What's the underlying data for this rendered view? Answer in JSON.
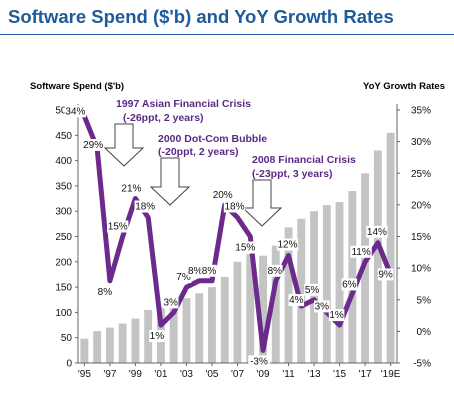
{
  "title": "Software Spend ($'b) and YoY Growth Rates",
  "chart_data": {
    "type": "bar+line",
    "title": "Software Spend ($'b) and YoY Growth Rates",
    "left_axis_title": "Software Spend ($'b)",
    "right_axis_title": "YoY Growth Rates",
    "left_ylim": [
      0,
      500
    ],
    "left_ticks": [
      "0",
      "50",
      "100",
      "150",
      "200",
      "250",
      "300",
      "350",
      "400",
      "450",
      "500"
    ],
    "right_ylim": [
      -5,
      35
    ],
    "right_ticks": [
      "-5%",
      "0%",
      "5%",
      "10%",
      "15%",
      "20%",
      "25%",
      "30%",
      "35%"
    ],
    "x_tick_labels": [
      "'95",
      "'97",
      "'99",
      "'01",
      "'03",
      "'05",
      "'07",
      "'09",
      "'11",
      "'13",
      "'15",
      "'17",
      "'19E"
    ],
    "years": [
      "1995",
      "1996",
      "1997",
      "1998",
      "1999",
      "2000",
      "2001",
      "2002",
      "2003",
      "2004",
      "2005",
      "2006",
      "2007",
      "2008",
      "2009",
      "2010",
      "2011",
      "2012",
      "2013",
      "2014",
      "2015",
      "2016",
      "2017",
      "2018",
      "2019E"
    ],
    "series": [
      {
        "name": "Software Spend ($'b)",
        "type": "bar",
        "color": "#c4c4c4",
        "values": [
          48,
          63,
          70,
          78,
          88,
          105,
          110,
          118,
          128,
          138,
          150,
          170,
          200,
          215,
          212,
          232,
          268,
          285,
          300,
          312,
          318,
          340,
          375,
          420,
          455
        ]
      },
      {
        "name": "YoY Growth Rates",
        "type": "line",
        "color": "#6b2a8c",
        "values": [
          34,
          29,
          8,
          15,
          21,
          18,
          1,
          3,
          7,
          8,
          8,
          20,
          18,
          15,
          -3,
          8,
          12,
          4,
          5,
          3,
          1,
          6,
          11,
          14,
          9
        ],
        "labels": [
          "34%",
          "29%",
          "8%",
          "15%",
          "21%",
          "18%",
          "1%",
          "3%",
          "7%",
          "8%",
          "8%",
          "20%",
          "18%",
          "15%",
          "-3%",
          "8%",
          "12%",
          "4%",
          "5%",
          "3%",
          "1%",
          "6%",
          "11%",
          "14%",
          "9%"
        ]
      }
    ],
    "annotations": [
      {
        "title": "1997 Asian Financial Crisis",
        "detail": "(-26ppt, 2 years)"
      },
      {
        "title": "2000 Dot-Com Bubble",
        "detail": "(-20ppt, 2 years)"
      },
      {
        "title": "2008 Financial Crisis",
        "detail": "(-23ppt, 3 years)"
      }
    ],
    "grid": false,
    "legend": "none"
  }
}
